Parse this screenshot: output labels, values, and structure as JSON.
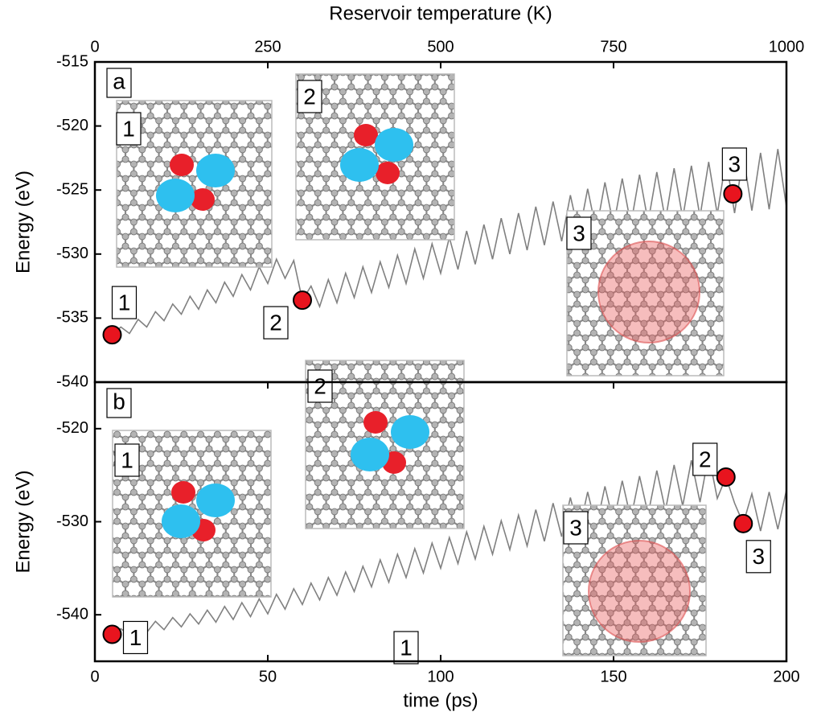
{
  "chart_data": [
    {
      "type": "line",
      "panel_label": "a",
      "ylabel": "Energy (eV)",
      "x2label": "Reservoir temperature (K)",
      "xlim": [
        0,
        200
      ],
      "x2lim": [
        0,
        1000
      ],
      "x2ticks": [
        0,
        250,
        500,
        750,
        1000
      ],
      "ylim": [
        -540,
        -515
      ],
      "yticks": [
        -540,
        -535,
        -530,
        -525,
        -520,
        -515
      ],
      "color": "#808080",
      "x": [
        5,
        7.5,
        10,
        12.5,
        15,
        17.5,
        20,
        22.5,
        25,
        27.5,
        30,
        32.5,
        35,
        37.5,
        40,
        42.5,
        45,
        47.5,
        50,
        52.5,
        55,
        57.5,
        60,
        62.5,
        65,
        67.5,
        70,
        72.5,
        75,
        77.5,
        80,
        82.5,
        85,
        87.5,
        90,
        92.5,
        95,
        97.5,
        100,
        102.5,
        105,
        107.5,
        110,
        112.5,
        115,
        117.5,
        120,
        122.5,
        125,
        127.5,
        130,
        132.5,
        135,
        137.5,
        140,
        142.5,
        145,
        147.5,
        150,
        152.5,
        155,
        157.5,
        160,
        162.5,
        165,
        167.5,
        170,
        172.5,
        175,
        177.5,
        180,
        182.5,
        185,
        187.5,
        190,
        192.5,
        195,
        197.5,
        200
      ],
      "values": [
        -536.3,
        -535.7,
        -536.2,
        -535.1,
        -535.7,
        -534.5,
        -535.2,
        -533.9,
        -534.7,
        -533.3,
        -534.3,
        -532.8,
        -533.8,
        -532.2,
        -533.3,
        -531.6,
        -532.8,
        -531.0,
        -532.3,
        -530.4,
        -531.9,
        -530.5,
        -533.6,
        -532.5,
        -534.1,
        -532.0,
        -533.8,
        -531.5,
        -533.4,
        -531.0,
        -533.0,
        -530.6,
        -532.6,
        -530.1,
        -532.3,
        -529.6,
        -531.9,
        -529.2,
        -531.5,
        -528.7,
        -531.2,
        -528.2,
        -530.8,
        -527.7,
        -530.4,
        -527.2,
        -530.0,
        -526.8,
        -529.7,
        -526.3,
        -529.3,
        -525.9,
        -529.0,
        -525.4,
        -528.5,
        -524.9,
        -528.2,
        -524.4,
        -527.8,
        -524.1,
        -527.7,
        -523.8,
        -527.5,
        -523.6,
        -527.4,
        -523.3,
        -527.2,
        -523.1,
        -527.1,
        -522.8,
        -526.9,
        -522.6,
        -526.8,
        -522.3,
        -526.6,
        -522.1,
        -526.5,
        -521.8,
        -526.3
      ],
      "markers": [
        {
          "x": 5,
          "y": -536.3,
          "label": "1"
        },
        {
          "x": 60,
          "y": -533.6,
          "label": "2"
        },
        {
          "x": 184.5,
          "y": -525.3,
          "label": "3"
        }
      ],
      "insets": [
        {
          "label": "1"
        },
        {
          "label": "2"
        },
        {
          "label": "3"
        }
      ]
    },
    {
      "type": "line",
      "panel_label": "b",
      "ylabel": "Energy (eV)",
      "xlabel": "time (ps)",
      "xlim": [
        0,
        200
      ],
      "xticks": [
        0,
        50,
        100,
        150,
        200
      ],
      "ylim": [
        -545,
        -515
      ],
      "yticks": [
        -540,
        -530,
        -520
      ],
      "color": "#808080",
      "x": [
        5,
        7.5,
        10,
        12.5,
        15,
        17.5,
        20,
        22.5,
        25,
        27.5,
        30,
        32.5,
        35,
        37.5,
        40,
        42.5,
        45,
        47.5,
        50,
        52.5,
        55,
        57.5,
        60,
        62.5,
        65,
        67.5,
        70,
        72.5,
        75,
        77.5,
        80,
        82.5,
        85,
        87.5,
        90,
        92.5,
        95,
        97.5,
        100,
        102.5,
        105,
        107.5,
        110,
        112.5,
        115,
        117.5,
        120,
        122.5,
        125,
        127.5,
        130,
        132.5,
        135,
        137.5,
        140,
        142.5,
        145,
        147.5,
        150,
        152.5,
        155,
        157.5,
        160,
        162.5,
        165,
        167.5,
        170,
        172.5,
        175,
        177.5,
        180,
        182.5,
        185,
        187.5,
        190,
        192.5,
        195,
        197.5,
        200
      ],
      "values": [
        -542.1,
        -541.5,
        -542.2,
        -541.1,
        -541.9,
        -540.7,
        -541.6,
        -540.3,
        -541.3,
        -539.9,
        -541.0,
        -539.5,
        -540.8,
        -539.1,
        -540.5,
        -538.7,
        -540.2,
        -538.3,
        -539.9,
        -537.8,
        -539.4,
        -537.2,
        -538.9,
        -536.6,
        -538.4,
        -536.0,
        -537.9,
        -535.4,
        -537.5,
        -534.8,
        -537.0,
        -534.1,
        -536.5,
        -533.5,
        -536.0,
        -532.9,
        -535.5,
        -532.3,
        -535.0,
        -531.7,
        -534.5,
        -531.1,
        -534.0,
        -530.5,
        -533.5,
        -529.9,
        -533.0,
        -529.3,
        -532.6,
        -528.7,
        -532.1,
        -528.0,
        -531.6,
        -527.4,
        -531.1,
        -526.8,
        -530.6,
        -526.2,
        -530.1,
        -525.6,
        -529.7,
        -525.1,
        -529.2,
        -524.5,
        -528.8,
        -523.9,
        -528.3,
        -523.4,
        -527.9,
        -522.8,
        -527.5,
        -525.2,
        -528.0,
        -530.2,
        -527.0,
        -531.0,
        -526.8,
        -530.8,
        -526.6
      ],
      "markers": [
        {
          "x": 5,
          "y": -542.1,
          "label": "1"
        },
        {
          "x": 182.5,
          "y": -525.2,
          "label": "2"
        },
        {
          "x": 187.5,
          "y": -530.2,
          "label": "3"
        }
      ],
      "insets": [
        {
          "label": "1"
        },
        {
          "label": "2"
        },
        {
          "label": "3"
        }
      ],
      "annotations": [
        {
          "text": "1"
        }
      ]
    }
  ]
}
